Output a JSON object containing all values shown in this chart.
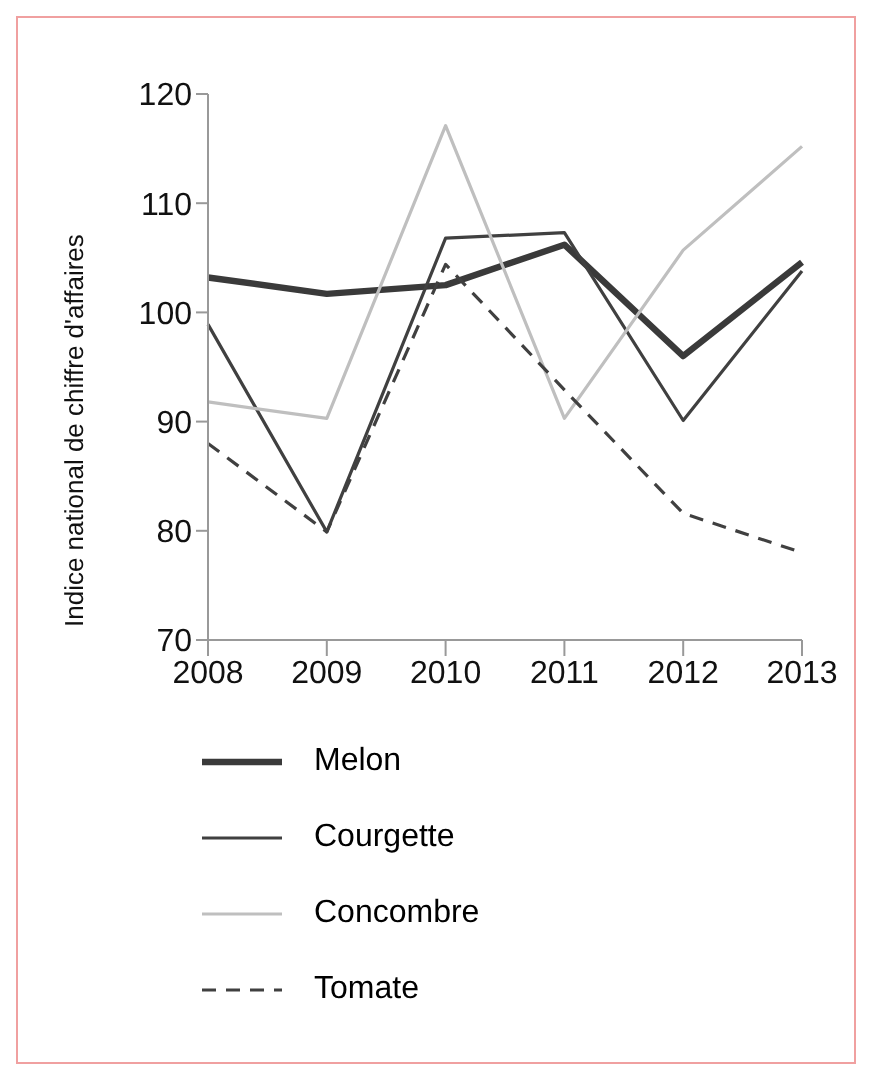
{
  "chart_data": {
    "type": "line",
    "ylabel": "Indice national de chiffre d'affaires",
    "categories": [
      "2008",
      "2009",
      "2010",
      "2011",
      "2012",
      "2013"
    ],
    "ylim": [
      70,
      120
    ],
    "yticks": [
      70,
      80,
      90,
      100,
      110,
      120
    ],
    "grid": false,
    "legend": "bottom",
    "marker": "none",
    "series": [
      {
        "name": "Melon",
        "color": "#3a3a3a",
        "values": [
          103.2,
          101.7,
          102.5,
          106.2,
          96.0,
          104.6
        ],
        "line_style": "solid"
      },
      {
        "name": "Courgette",
        "color": "#404040",
        "values": [
          98.9,
          79.9,
          106.8,
          107.3,
          90.1,
          103.8
        ],
        "line_style": "solid"
      },
      {
        "name": "Concombre",
        "color": "#bfbfbf",
        "values": [
          91.8,
          90.3,
          117.1,
          90.3,
          105.7,
          115.2
        ],
        "line_style": "solid"
      },
      {
        "name": "Tomate",
        "color": "#404040",
        "values": [
          88.0,
          79.9,
          104.4,
          92.9,
          81.6,
          78.0
        ],
        "line_style": "dashed"
      }
    ]
  }
}
